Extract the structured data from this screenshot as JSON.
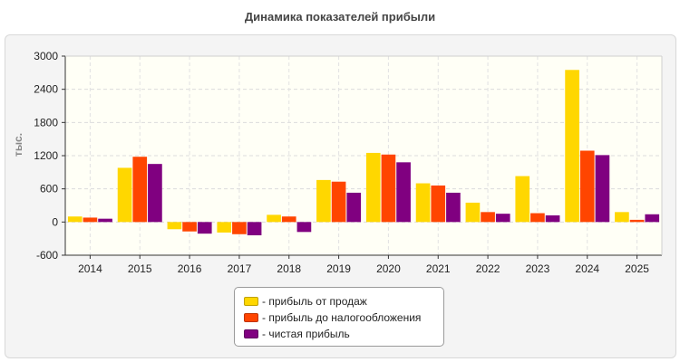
{
  "chart_data": {
    "type": "bar",
    "title": "Динамика показателей прибыли",
    "ylabel": "тыс.",
    "xlabel": "",
    "ylim": [
      -600,
      3000
    ],
    "yticks": [
      -600,
      0,
      600,
      1200,
      1800,
      2400,
      3000
    ],
    "categories": [
      "2014",
      "2015",
      "2016",
      "2017",
      "2018",
      "2019",
      "2020",
      "2021",
      "2022",
      "2023",
      "2024",
      "2025"
    ],
    "series": [
      {
        "name": "- прибыль от продаж",
        "color": "#ffd700",
        "values": [
          100,
          980,
          -130,
          -190,
          130,
          760,
          1250,
          700,
          350,
          830,
          2750,
          180
        ]
      },
      {
        "name": "- прибыль до налогообложения",
        "color": "#ff4500",
        "values": [
          80,
          1180,
          -170,
          -220,
          100,
          730,
          1220,
          660,
          180,
          160,
          1290,
          40
        ]
      },
      {
        "name": "- чистая прибыль",
        "color": "#800080",
        "values": [
          60,
          1050,
          -210,
          -240,
          -180,
          530,
          1080,
          530,
          150,
          120,
          1210,
          140
        ]
      }
    ],
    "grid": true,
    "legend_position": "bottom-center"
  }
}
